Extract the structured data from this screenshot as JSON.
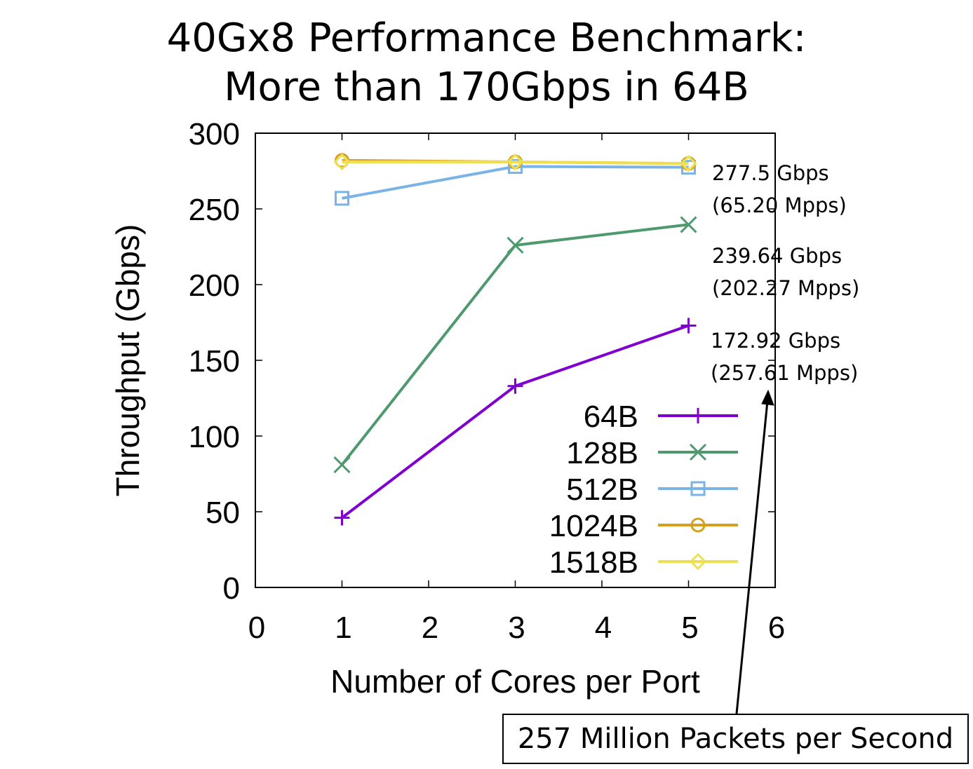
{
  "title_line1": "40Gx8 Performance Benchmark:",
  "title_line2": "More than 170Gbps in 64B",
  "chart_data": {
    "type": "line",
    "xlabel": "Number of Cores per Port",
    "ylabel": "Throughput (Gbps)",
    "xlim": [
      0,
      6
    ],
    "ylim": [
      0,
      300
    ],
    "xticks": [
      "0",
      "1",
      "2",
      "3",
      "4",
      "5",
      "6"
    ],
    "yticks": [
      "0",
      "50",
      "100",
      "150",
      "200",
      "250",
      "300"
    ],
    "x": [
      1,
      3,
      5
    ],
    "legend_position": "lower-right inside",
    "series": [
      {
        "name": "64B",
        "values": [
          46,
          133,
          172.92
        ],
        "color": "#8000d0",
        "marker": "plus"
      },
      {
        "name": "128B",
        "values": [
          81,
          226,
          239.64
        ],
        "color": "#4e9a6e",
        "marker": "cross"
      },
      {
        "name": "512B",
        "values": [
          257,
          278,
          277.5
        ],
        "color": "#7ab3e6",
        "marker": "square"
      },
      {
        "name": "1024B",
        "values": [
          282,
          281,
          280
        ],
        "color": "#d4a020",
        "marker": "circle"
      },
      {
        "name": "1518B",
        "values": [
          281,
          281,
          280
        ],
        "color": "#ece052",
        "marker": "diamond"
      }
    ],
    "annotations": [
      {
        "line1": "277.5 Gbps",
        "line2": "(65.20 Mpps)"
      },
      {
        "line1": "239.64 Gbps",
        "line2": "(202.27 Mpps)"
      },
      {
        "line1": "172.92 Gbps",
        "line2": "(257.61 Mpps)"
      }
    ],
    "callout": "257 Million Packets per Second"
  }
}
